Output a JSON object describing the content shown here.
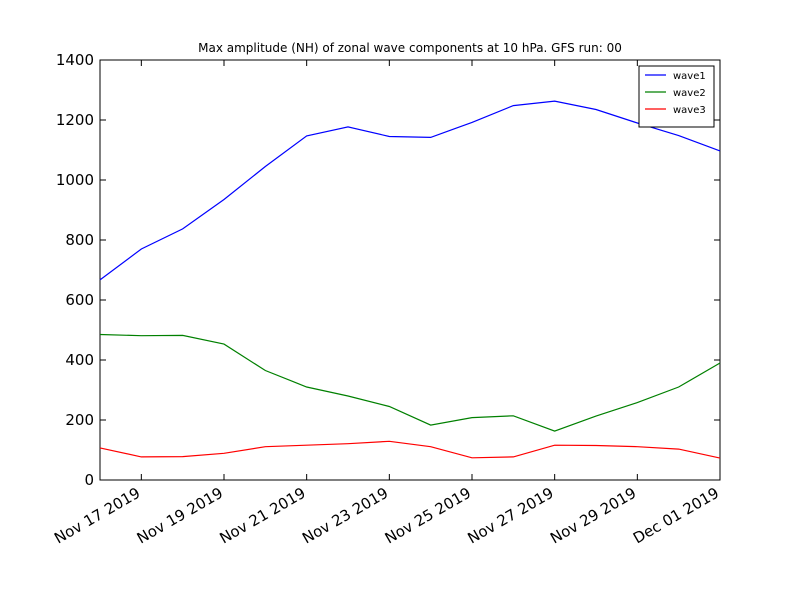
{
  "chart_data": {
    "type": "line",
    "title": "Max amplitude (NH) of zonal wave components at 10 hPa. GFS run: 00",
    "xlabel": "",
    "ylabel": "",
    "x": [
      "2019-11-16",
      "2019-11-17",
      "2019-11-18",
      "2019-11-19",
      "2019-11-20",
      "2019-11-21",
      "2019-11-22",
      "2019-11-23",
      "2019-11-24",
      "2019-11-25",
      "2019-11-26",
      "2019-11-27",
      "2019-11-28",
      "2019-11-29",
      "2019-11-30",
      "2019-12-01"
    ],
    "xlim": [
      "2019-11-16",
      "2019-12-01"
    ],
    "xticks": [
      "2019-11-17",
      "2019-11-19",
      "2019-11-21",
      "2019-11-23",
      "2019-11-25",
      "2019-11-27",
      "2019-11-29",
      "2019-12-01"
    ],
    "xtick_labels": [
      "Nov 17 2019",
      "Nov 19 2019",
      "Nov 21 2019",
      "Nov 23 2019",
      "Nov 25 2019",
      "Nov 27 2019",
      "Nov 29 2019",
      "Dec 01 2019"
    ],
    "ylim": [
      0,
      1400
    ],
    "yticks": [
      0,
      200,
      400,
      600,
      800,
      1000,
      1200,
      1400
    ],
    "ytick_labels": [
      "0",
      "200",
      "400",
      "600",
      "800",
      "1000",
      "1200",
      "1400"
    ],
    "grid": false,
    "legend_position": "top-right",
    "series": [
      {
        "name": "wave1",
        "color": "#0000ff",
        "values": [
          667,
          770,
          837,
          935,
          1045,
          1147,
          1177,
          1145,
          1142,
          1192,
          1248,
          1263,
          1235,
          1190,
          1148,
          1097
        ]
      },
      {
        "name": "wave2",
        "color": "#008000",
        "values": [
          485,
          481,
          482,
          453,
          365,
          310,
          280,
          245,
          183,
          208,
          214,
          163,
          213,
          258,
          310,
          390
        ]
      },
      {
        "name": "wave3",
        "color": "#ff0000",
        "values": [
          107,
          77,
          78,
          89,
          111,
          116,
          121,
          129,
          111,
          74,
          77,
          116,
          115,
          111,
          103,
          73
        ]
      }
    ]
  }
}
